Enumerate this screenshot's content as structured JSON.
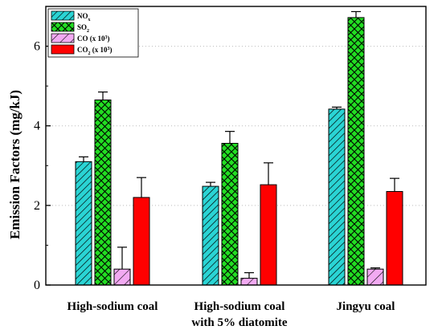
{
  "chart_data": {
    "type": "bar",
    "title": "",
    "xlabel": "",
    "ylabel": "Emission Factors  (mg/kJ)",
    "ylim": [
      0,
      7
    ],
    "yticks": [
      0,
      2,
      4,
      6
    ],
    "grid": "horizontal dotted",
    "legend_placement": "top-left",
    "categories": [
      [
        "High-sodium coal"
      ],
      [
        "High-sodium coal",
        "with 5% diatomite"
      ],
      [
        "Jingyu coal"
      ]
    ],
    "series": [
      {
        "name": "NOx",
        "name_main": "NO",
        "name_sub": "x",
        "name_sup": "",
        "name_tail": "",
        "color": "#2ad4d4",
        "pattern": "diagonal-lines",
        "values": [
          3.1,
          2.48,
          4.42
        ],
        "errors": [
          0.12,
          0.1,
          0.05
        ]
      },
      {
        "name": "SO2",
        "name_main": "SO",
        "name_sub": "2",
        "name_sup": "",
        "name_tail": "",
        "color": "#22dd22",
        "pattern": "crosshatch",
        "values": [
          4.65,
          3.56,
          6.72
        ],
        "errors": [
          0.2,
          0.3,
          0.15
        ]
      },
      {
        "name": "CO (x 10^3)",
        "name_main": "CO (x 10",
        "name_sub": "",
        "name_sup": "3",
        "name_tail": ")",
        "color": "#f2aaf2",
        "pattern": "diagonal-lines-sparse",
        "values": [
          0.4,
          0.17,
          0.4
        ],
        "errors": [
          0.55,
          0.14,
          0.03
        ]
      },
      {
        "name": "CO2 (x 10^3)",
        "name_main": "CO",
        "name_sub": "2",
        "name_sup": "3",
        "name_tail": ")",
        "name_mid": " (x 10",
        "color": "#ff0000",
        "pattern": "solid",
        "values": [
          2.2,
          2.52,
          2.35
        ],
        "errors": [
          0.5,
          0.55,
          0.33
        ]
      }
    ]
  }
}
